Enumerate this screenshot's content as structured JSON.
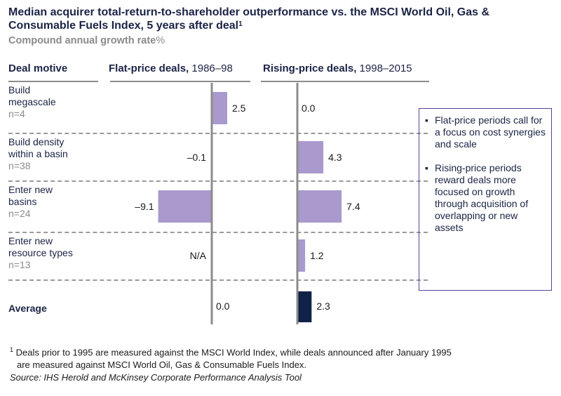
{
  "title": "Median acquirer total-return-to-shareholder outperformance vs. the MSCI World Oil, Gas & Consumable Fuels Index, 5 years after deal",
  "title_footnote_mark": "1",
  "subtitle": "Compound annual growth rate",
  "subtitle_unit": "%",
  "columns": {
    "motive": "Deal motive",
    "flat_bold": "Flat-price deals,",
    "flat_years": " 1986–98",
    "rising_bold": "Rising-price deals,",
    "rising_years": " 1998–2015"
  },
  "rows": [
    {
      "line1": "Build",
      "line2": "megascale",
      "n": "n=4"
    },
    {
      "line1": "Build density",
      "line2": "within a basin",
      "n": "n=38"
    },
    {
      "line1": "Enter new",
      "line2": "basins",
      "n": "n=24"
    },
    {
      "line1": "Enter new",
      "line2": "resource types",
      "n": "n=13"
    },
    {
      "line1": "Average",
      "line2": "",
      "n": ""
    }
  ],
  "chart_data": {
    "type": "bar",
    "orientation": "horizontal",
    "title": "Median acquirer total-return-to-shareholder outperformance vs. the MSCI World Oil, Gas & Consumable Fuels Index, 5 years after deal",
    "ylabel": "Compound annual growth rate, %",
    "categories": [
      "Build megascale",
      "Build density within a basin",
      "Enter new basins",
      "Enter new resource types",
      "Average"
    ],
    "series": [
      {
        "name": "Flat-price deals, 1986–98",
        "values": [
          2.5,
          -0.1,
          -9.1,
          null,
          0.0
        ],
        "labels": [
          "2.5",
          "–0.1",
          "–9.1",
          "N/A",
          "0.0"
        ]
      },
      {
        "name": "Rising-price deals, 1998–2015",
        "values": [
          0.0,
          4.3,
          7.4,
          1.2,
          2.3
        ],
        "labels": [
          "0.0",
          "4.3",
          "7.4",
          "1.2",
          "2.3"
        ]
      }
    ],
    "colors": {
      "bar": "#a999cc",
      "average_bar": "#0f2147",
      "axis": "#8c8c8c"
    }
  },
  "callout": {
    "bullet": "▪",
    "items": [
      "Flat-price periods call for a focus on cost synergies and scale",
      "Rising-price periods reward deals more focused on growth through acquisition of overlapping or new assets"
    ]
  },
  "footnote": {
    "mark": "1",
    "line1": "Deals prior to 1995 are measured against the MSCI World Index, while deals announced after January 1995",
    "line2": "are measured against MSCI World Oil, Gas & Consumable Fuels Index.",
    "source": "Source: IHS Herold and McKinsey Corporate Performance Analysis Tool"
  }
}
